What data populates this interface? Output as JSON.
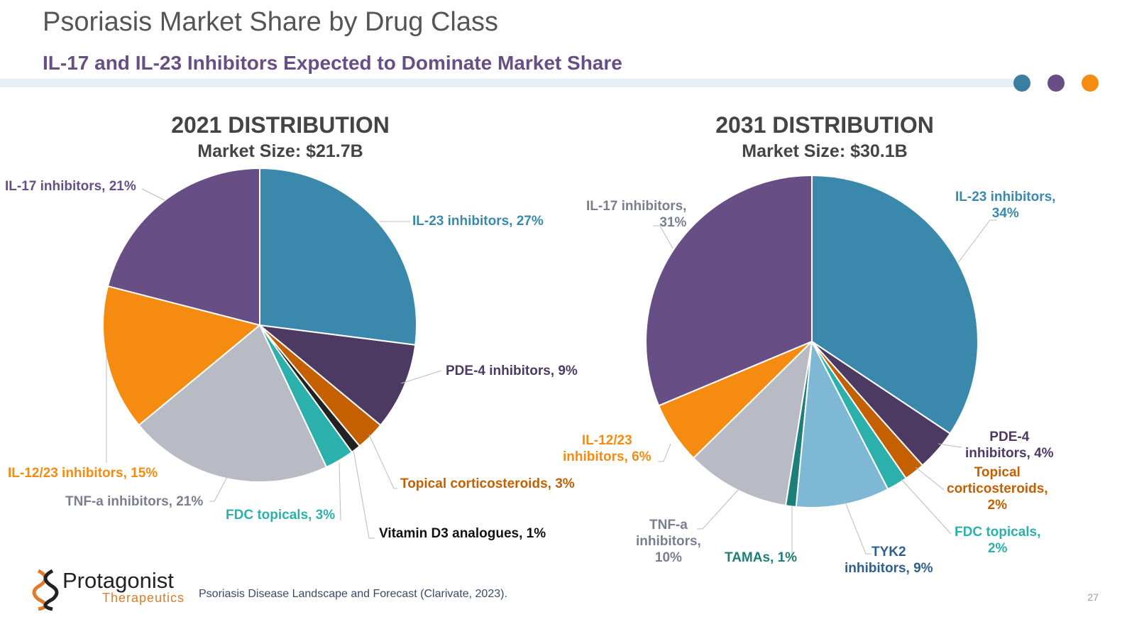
{
  "header": {
    "title": "Psoriasis Market Share by Drug Class",
    "subtitle": "IL-17 and IL-23 Inhibitors Expected to Dominate Market Share"
  },
  "accent_dots": [
    "#3a7fa0",
    "#674f86",
    "#f68b12"
  ],
  "logo": {
    "name": "Protagonist",
    "sub": "Therapeutics"
  },
  "footer": {
    "source": "Psoriasis Disease Landscape and Forecast (Clarivate, 2023).",
    "page": "27"
  },
  "chart_data": [
    {
      "type": "pie",
      "title": "2021 DISTRIBUTION",
      "subtitle": "Market Size: $21.7B",
      "slices": [
        {
          "name": "IL-23 inhibitors",
          "value": 27,
          "color": "#3a89ad",
          "label": "IL-23 inhibitors, 27%"
        },
        {
          "name": "PDE-4 inhibitors",
          "value": 9,
          "color": "#4d3a63",
          "label": "PDE-4 inhibitors, 9%"
        },
        {
          "name": "Topical corticosteroids",
          "value": 3,
          "color": "#c46000",
          "label": "Topical corticosteroids, 3%"
        },
        {
          "name": "Vitamin D3 analogues",
          "value": 1,
          "color": "#222222",
          "label": "Vitamin D3 analogues, 1%"
        },
        {
          "name": "FDC topicals",
          "value": 3,
          "color": "#2bb0ab",
          "label": "FDC topicals, 3%"
        },
        {
          "name": "TNF-a inhibitors",
          "value": 21,
          "color": "#b8bbc3",
          "label": "TNF-a inhibitors, 21%"
        },
        {
          "name": "IL-12/23 inhibitors",
          "value": 15,
          "color": "#f68b12",
          "label": "IL-12/23 inhibitors, 15%"
        },
        {
          "name": "IL-17 inhibitors",
          "value": 21,
          "color": "#674f86",
          "label": "IL-17 inhibitors, 21%"
        }
      ]
    },
    {
      "type": "pie",
      "title": "2031 DISTRIBUTION",
      "subtitle": "Market Size: $30.1B",
      "slices": [
        {
          "name": "IL-23 inhibitors",
          "value": 34,
          "color": "#3a89ad",
          "label": "IL-23 inhibitors,\n34%"
        },
        {
          "name": "PDE-4 inhibitors",
          "value": 4,
          "color": "#4d3a63",
          "label": "PDE-4\ninhibitors, 4%"
        },
        {
          "name": "Topical corticosteroids",
          "value": 2,
          "color": "#c46000",
          "label": "Topical\ncorticosteroids,\n2%"
        },
        {
          "name": "FDC topicals",
          "value": 2,
          "color": "#2bb0ab",
          "label": "FDC topicals,\n2%"
        },
        {
          "name": "TYK2 inhibitors",
          "value": 9,
          "color": "#7fb8d4",
          "label": "TYK2\ninhibitors, 9%"
        },
        {
          "name": "TAMAs",
          "value": 1,
          "color": "#1c7f7a",
          "label": "TAMAs, 1%"
        },
        {
          "name": "TNF-a inhibitors",
          "value": 10,
          "color": "#b8bbc3",
          "label": "TNF-a\ninhibitors,\n10%"
        },
        {
          "name": "IL-12/23 inhibitors",
          "value": 6,
          "color": "#f68b12",
          "label": "IL-12/23\ninhibitors, 6%"
        },
        {
          "name": "IL-17 inhibitors",
          "value": 31,
          "color": "#674f86",
          "label": "IL-17 inhibitors,\n31%"
        }
      ]
    }
  ]
}
